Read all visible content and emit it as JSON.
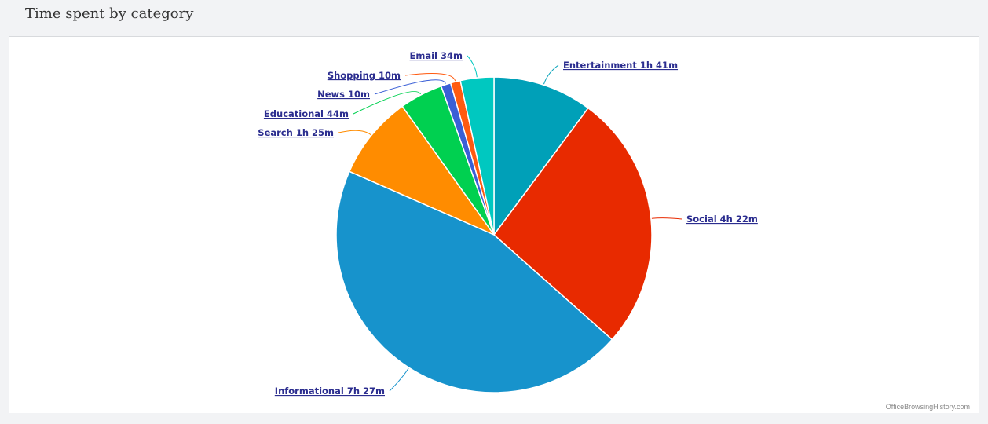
{
  "panel": {
    "title": "Time spent by category",
    "watermark": "OfficeBrowsingHistory.com"
  },
  "chart_data": {
    "type": "pie",
    "title": "Time spent by category",
    "unit": "minutes",
    "start_angle_deg": 0,
    "direction": "clockwise",
    "slices": [
      {
        "name": "Entertainment",
        "label": "Entertainment 1h 41m",
        "value": 101,
        "color": "#00a0b8"
      },
      {
        "name": "Social",
        "label": "Social 4h 22m",
        "value": 262,
        "color": "#e82a00"
      },
      {
        "name": "Informational",
        "label": "Informational 7h 27m",
        "value": 447,
        "color": "#1793cc"
      },
      {
        "name": "Search",
        "label": "Search 1h 25m",
        "value": 85,
        "color": "#ff8c00"
      },
      {
        "name": "Educational",
        "label": "Educational 44m",
        "value": 44,
        "color": "#00d050"
      },
      {
        "name": "News",
        "label": "News 10m",
        "value": 10,
        "color": "#3a5fd6"
      },
      {
        "name": "Shopping",
        "label": "Shopping 10m",
        "value": 10,
        "color": "#ff5a10"
      },
      {
        "name": "Email",
        "label": "Email 34m",
        "value": 34,
        "color": "#00c8c0"
      }
    ]
  }
}
